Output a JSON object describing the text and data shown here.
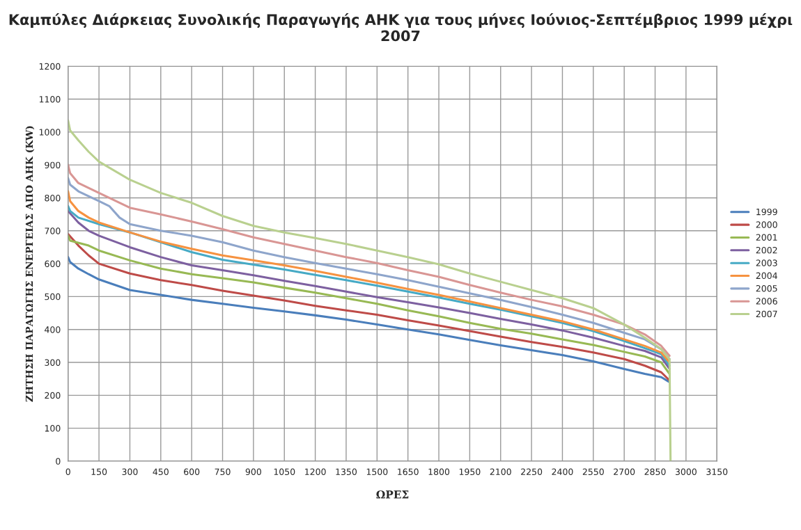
{
  "chart_data": {
    "type": "line",
    "title": "Καμπύλες Διάρκειας Συνολικής Παραγωγής ΑΗΚ για τους μήνες Ιούνιος-Σεπτέμβριος 1999 μέχρι 2007",
    "xlabel": "ΩΡΕΣ",
    "ylabel": "ΖΗΤΗΣΗ ΠΑΡΑΓΩΓΗΣ ΕΝΕΡΓΕΙΑΣ ΑΠΟ ΑΗΚ (KW)",
    "xlim": [
      0,
      3150
    ],
    "xticks": [
      0,
      150,
      300,
      450,
      600,
      750,
      900,
      1050,
      1200,
      1350,
      1500,
      1650,
      1800,
      1950,
      2100,
      2250,
      2400,
      2550,
      2700,
      2850,
      3000,
      3150
    ],
    "ylim": [
      0,
      1200
    ],
    "yticks": [
      0,
      100,
      200,
      300,
      400,
      500,
      600,
      700,
      800,
      900,
      1000,
      1100,
      1200
    ],
    "grid": true,
    "legend": "right",
    "marker": "none",
    "line_style": "solid",
    "series": [
      {
        "name": "1999",
        "color": "#4a7ebb",
        "x": [
          0,
          10,
          50,
          100,
          150,
          300,
          450,
          600,
          750,
          900,
          1050,
          1200,
          1350,
          1500,
          1650,
          1800,
          1950,
          2100,
          2250,
          2400,
          2550,
          2700,
          2800,
          2880,
          2920
        ],
        "values": [
          620,
          605,
          585,
          568,
          552,
          520,
          505,
          490,
          478,
          466,
          455,
          443,
          430,
          415,
          400,
          385,
          368,
          352,
          337,
          322,
          303,
          280,
          265,
          255,
          240
        ]
      },
      {
        "name": "2000",
        "color": "#be4b48",
        "x": [
          0,
          50,
          100,
          150,
          300,
          450,
          600,
          750,
          900,
          1050,
          1200,
          1350,
          1500,
          1650,
          1800,
          1950,
          2100,
          2250,
          2400,
          2550,
          2700,
          2800,
          2880,
          2920
        ],
        "values": [
          690,
          655,
          625,
          600,
          570,
          550,
          535,
          518,
          503,
          488,
          472,
          458,
          445,
          428,
          412,
          395,
          378,
          362,
          347,
          330,
          310,
          290,
          270,
          245
        ]
      },
      {
        "name": "2001",
        "color": "#98b954",
        "x": [
          0,
          10,
          100,
          150,
          300,
          450,
          600,
          750,
          900,
          1050,
          1200,
          1350,
          1500,
          1650,
          1800,
          1950,
          2100,
          2250,
          2400,
          2550,
          2700,
          2800,
          2880,
          2920
        ],
        "values": [
          685,
          670,
          655,
          640,
          610,
          585,
          568,
          556,
          543,
          527,
          512,
          495,
          478,
          458,
          440,
          420,
          402,
          387,
          370,
          353,
          332,
          318,
          300,
          265
        ]
      },
      {
        "name": "2002",
        "color": "#7d60a0",
        "x": [
          0,
          50,
          100,
          150,
          300,
          450,
          600,
          750,
          900,
          1050,
          1200,
          1350,
          1500,
          1650,
          1800,
          1950,
          2100,
          2250,
          2400,
          2550,
          2700,
          2800,
          2880,
          2920
        ],
        "values": [
          760,
          725,
          700,
          685,
          650,
          620,
          595,
          580,
          565,
          548,
          532,
          515,
          498,
          483,
          467,
          450,
          432,
          415,
          397,
          375,
          350,
          335,
          315,
          280
        ]
      },
      {
        "name": "2003",
        "color": "#46aac5",
        "x": [
          0,
          10,
          50,
          150,
          300,
          450,
          600,
          750,
          900,
          1050,
          1200,
          1350,
          1500,
          1650,
          1800,
          1950,
          2100,
          2250,
          2400,
          2550,
          2700,
          2800,
          2880,
          2920
        ],
        "values": [
          775,
          760,
          740,
          720,
          695,
          665,
          635,
          612,
          597,
          582,
          566,
          550,
          533,
          515,
          497,
          478,
          460,
          440,
          420,
          395,
          365,
          343,
          325,
          290
        ]
      },
      {
        "name": "2004",
        "color": "#f69240",
        "x": [
          0,
          10,
          50,
          100,
          150,
          300,
          450,
          600,
          750,
          900,
          1050,
          1200,
          1350,
          1500,
          1650,
          1800,
          1950,
          2100,
          2250,
          2400,
          2550,
          2700,
          2800,
          2880,
          2920
        ],
        "values": [
          820,
          790,
          760,
          740,
          725,
          695,
          667,
          645,
          625,
          610,
          595,
          578,
          560,
          542,
          523,
          505,
          485,
          465,
          445,
          425,
          400,
          370,
          350,
          330,
          300
        ]
      },
      {
        "name": "2005",
        "color": "#8ea5cb",
        "x": [
          0,
          10,
          50,
          150,
          200,
          250,
          300,
          450,
          600,
          750,
          900,
          1050,
          1200,
          1350,
          1500,
          1650,
          1800,
          1950,
          2100,
          2250,
          2400,
          2550,
          2700,
          2800,
          2880,
          2920
        ],
        "values": [
          860,
          840,
          820,
          790,
          775,
          740,
          720,
          700,
          685,
          665,
          640,
          620,
          602,
          585,
          568,
          550,
          530,
          510,
          490,
          468,
          445,
          420,
          390,
          370,
          340,
          310
        ]
      },
      {
        "name": "2006",
        "color": "#d99694",
        "x": [
          0,
          10,
          50,
          150,
          300,
          450,
          600,
          750,
          900,
          1050,
          1200,
          1350,
          1500,
          1650,
          1800,
          1950,
          2100,
          2250,
          2400,
          2550,
          2700,
          2800,
          2880,
          2920
        ],
        "values": [
          900,
          875,
          845,
          815,
          770,
          750,
          728,
          705,
          680,
          660,
          640,
          620,
          602,
          580,
          560,
          535,
          512,
          490,
          470,
          445,
          415,
          385,
          350,
          320
        ]
      },
      {
        "name": "2007",
        "color": "#b9d08f",
        "x": [
          0,
          10,
          50,
          100,
          150,
          300,
          450,
          600,
          750,
          900,
          1050,
          1200,
          1350,
          1500,
          1650,
          1800,
          1950,
          2100,
          2250,
          2400,
          2550,
          2700,
          2800,
          2880,
          2920,
          2925
        ],
        "values": [
          1035,
          1005,
          975,
          940,
          910,
          855,
          815,
          785,
          745,
          715,
          695,
          678,
          660,
          640,
          620,
          598,
          570,
          545,
          520,
          495,
          465,
          415,
          375,
          340,
          310,
          0
        ]
      }
    ]
  }
}
